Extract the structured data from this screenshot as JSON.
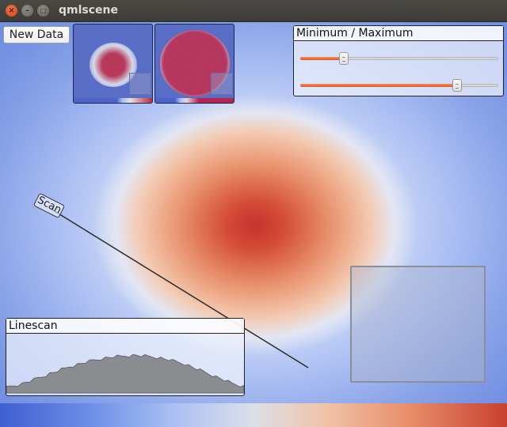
{
  "window": {
    "title": "qmlscene",
    "controls": [
      "close-icon",
      "minimize-icon",
      "maximize-icon"
    ]
  },
  "toolbar": {
    "new_data_label": "New Data"
  },
  "thumbnails": [
    {
      "name": "thumbnail-1"
    },
    {
      "name": "thumbnail-2"
    }
  ],
  "minmax_panel": {
    "title": "Minimum / Maximum",
    "minimum_value": 0.22,
    "maximum_value": 0.79,
    "accent_color": "#e2612a"
  },
  "linescan_panel": {
    "title": "Linescan",
    "profile": [
      0.1,
      0.12,
      0.14,
      0.15,
      0.17,
      0.2,
      0.22,
      0.25,
      0.28,
      0.3,
      0.33,
      0.36,
      0.38,
      0.41,
      0.44,
      0.46,
      0.49,
      0.51,
      0.53,
      0.55,
      0.57,
      0.59,
      0.61,
      0.62,
      0.64,
      0.65,
      0.66,
      0.67,
      0.68,
      0.68,
      0.69,
      0.69,
      0.7,
      0.7,
      0.69,
      0.69,
      0.68,
      0.67,
      0.66,
      0.65,
      0.63,
      0.62,
      0.6,
      0.58,
      0.56,
      0.54,
      0.51,
      0.48,
      0.45,
      0.42,
      0.39,
      0.36,
      0.33,
      0.3,
      0.27,
      0.24,
      0.21,
      0.18,
      0.16,
      0.14,
      0.12
    ]
  },
  "scan_handle": {
    "label": "Scan"
  },
  "colors": {
    "low": "#3e5fd0",
    "mid": "#dcdfe8",
    "high": "#c9402f"
  }
}
